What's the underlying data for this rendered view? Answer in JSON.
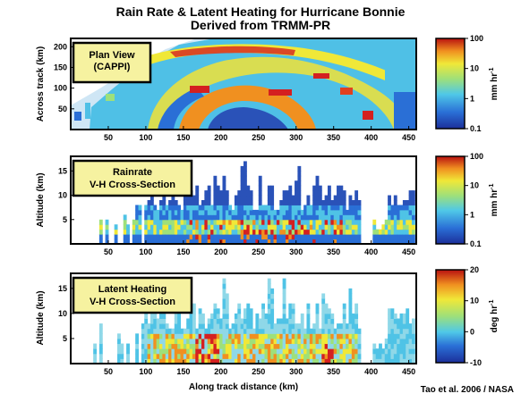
{
  "title_line1": "Rain Rate & Latent Heating for Hurricane Bonnie",
  "title_line2": "Derived from TRMM-PR",
  "credit": "Tao et al. 2006 / NASA",
  "chart_data": [
    {
      "type": "heatmap",
      "panel_label": [
        "Plan View",
        "(CAPPI)"
      ],
      "xlabel": "",
      "ylabel": "Across track (km)",
      "xlim": [
        0,
        460
      ],
      "ylim": [
        0,
        220
      ],
      "x_ticks": [
        50,
        100,
        150,
        200,
        250,
        300,
        350,
        400,
        450
      ],
      "y_ticks": [
        50,
        100,
        150,
        200
      ],
      "colorbar": {
        "unit": "mm hr",
        "unit_exp": "-1",
        "ticks": [
          "100",
          "10",
          "1",
          "0.1"
        ],
        "scale": "log",
        "range": [
          0.1,
          100
        ]
      },
      "colors": {
        "low": "#2a52b8",
        "mid": "#4fc3e6",
        "high": "#e8e040",
        "max": "#d42020"
      }
    },
    {
      "type": "heatmap",
      "panel_label": [
        "Rainrate",
        "V-H Cross-Section"
      ],
      "xlabel": "",
      "ylabel": "Altitude (km)",
      "xlim": [
        0,
        460
      ],
      "ylim": [
        0,
        18
      ],
      "x_ticks": [
        50,
        100,
        150,
        200,
        250,
        300,
        350,
        400,
        450
      ],
      "y_ticks": [
        5,
        10,
        15
      ],
      "colorbar": {
        "unit": "mm hr",
        "unit_exp": "-1",
        "ticks": [
          "100",
          "10",
          "1",
          "0.1"
        ],
        "scale": "log",
        "range": [
          0.1,
          100
        ]
      }
    },
    {
      "type": "heatmap",
      "panel_label": [
        "Latent Heating",
        "V-H Cross-Section"
      ],
      "xlabel": "Along track distance (km)",
      "ylabel": "Altitude (km)",
      "xlim": [
        0,
        460
      ],
      "ylim": [
        0,
        18
      ],
      "x_ticks": [
        50,
        100,
        150,
        200,
        250,
        300,
        350,
        400,
        450
      ],
      "y_ticks": [
        5,
        10,
        15
      ],
      "colorbar": {
        "unit": "deg hr",
        "unit_exp": "-1",
        "ticks": [
          "20",
          "10",
          "0",
          "-10"
        ],
        "scale": "linear",
        "range": [
          -10,
          20
        ]
      }
    }
  ]
}
